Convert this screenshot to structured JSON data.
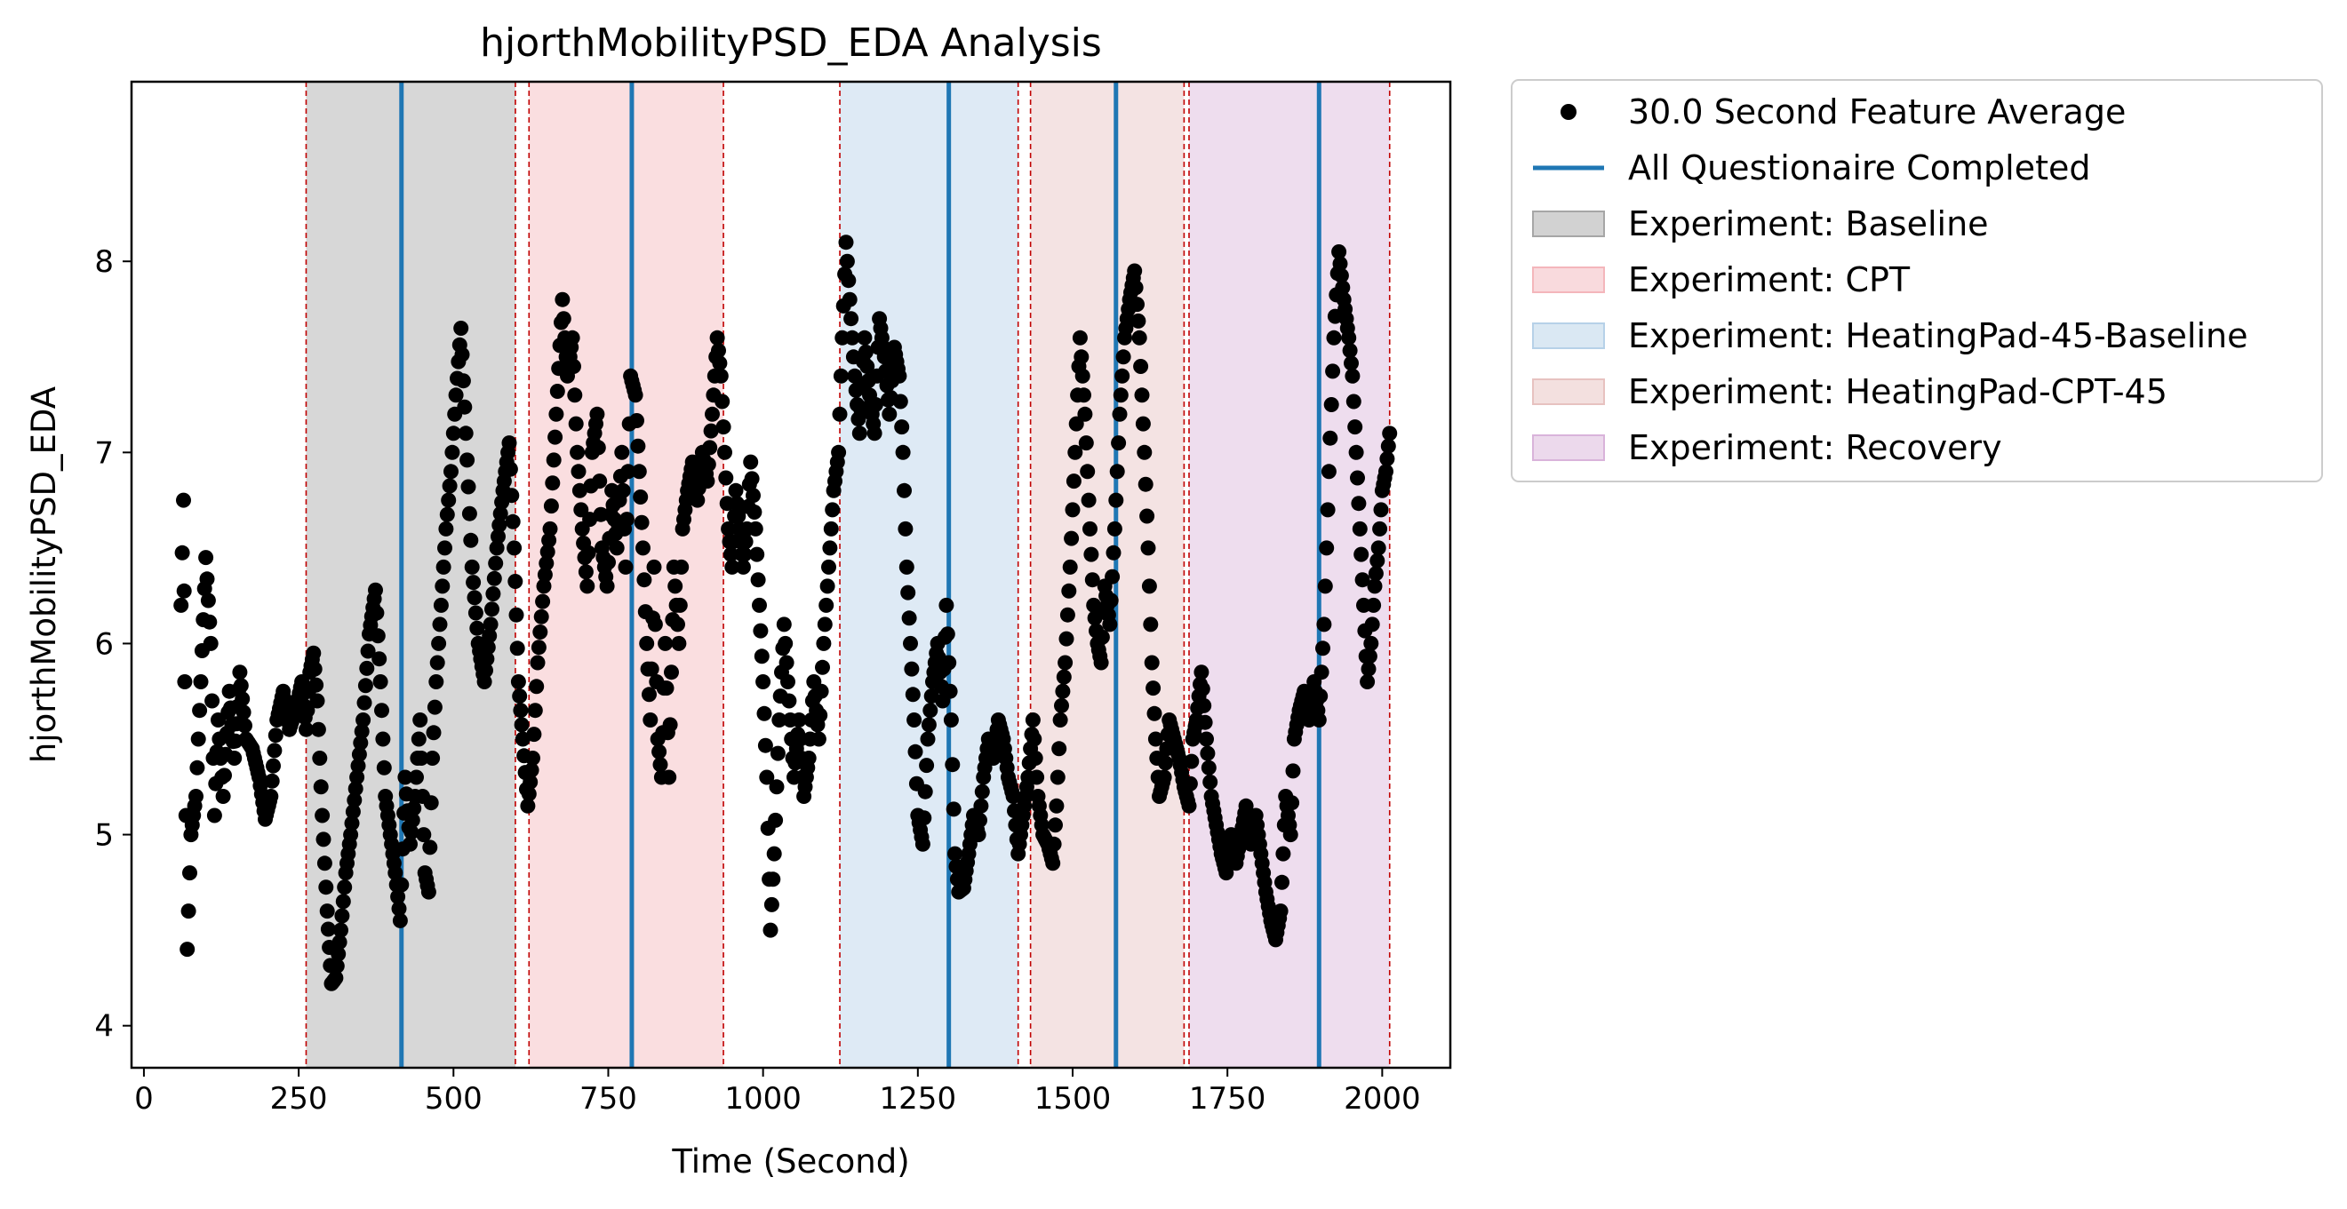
{
  "chart_data": {
    "type": "scatter",
    "title": "hjorthMobilityPSD_EDA Analysis",
    "xlabel": "Time (Second)",
    "ylabel": "hjorthMobilityPSD_EDA",
    "xlim": [
      -20,
      2110
    ],
    "ylim": [
      3.78,
      8.94
    ],
    "xticks": [
      0,
      250,
      500,
      750,
      1000,
      1250,
      1500,
      1750,
      2000
    ],
    "yticks": [
      4,
      5,
      6,
      7,
      8
    ],
    "grid": false,
    "legend_placement": "outside-upper-right",
    "series_name": "30.0 Second Feature Average",
    "point_color": "#000000",
    "anchors": [
      [
        60,
        6.2
      ],
      [
        64,
        6.75
      ],
      [
        66,
        5.8
      ],
      [
        70,
        4.4
      ],
      [
        76,
        5.0
      ],
      [
        84,
        5.2
      ],
      [
        92,
        5.8
      ],
      [
        100,
        6.45
      ],
      [
        108,
        6.0
      ],
      [
        114,
        5.1
      ],
      [
        120,
        5.6
      ],
      [
        128,
        5.2
      ],
      [
        138,
        5.75
      ],
      [
        146,
        5.4
      ],
      [
        155,
        5.85
      ],
      [
        165,
        5.5
      ],
      [
        175,
        5.45
      ],
      [
        186,
        5.3
      ],
      [
        196,
        5.08
      ],
      [
        205,
        5.2
      ],
      [
        215,
        5.6
      ],
      [
        225,
        5.75
      ],
      [
        235,
        5.55
      ],
      [
        245,
        5.65
      ],
      [
        255,
        5.8
      ],
      [
        262,
        5.55
      ],
      [
        268,
        5.85
      ],
      [
        274,
        5.95
      ],
      [
        280,
        5.7
      ],
      [
        288,
        5.1
      ],
      [
        296,
        4.6
      ],
      [
        303,
        4.22
      ],
      [
        310,
        4.25
      ],
      [
        318,
        4.5
      ],
      [
        326,
        4.8
      ],
      [
        334,
        5.0
      ],
      [
        344,
        5.3
      ],
      [
        354,
        5.6
      ],
      [
        364,
        6.05
      ],
      [
        374,
        6.28
      ],
      [
        382,
        5.8
      ],
      [
        390,
        5.2
      ],
      [
        398,
        5.0
      ],
      [
        406,
        4.8
      ],
      [
        414,
        4.55
      ],
      [
        422,
        5.3
      ],
      [
        430,
        4.95
      ],
      [
        438,
        5.2
      ],
      [
        446,
        5.6
      ],
      [
        454,
        4.8
      ],
      [
        460,
        4.7
      ],
      [
        466,
        5.4
      ],
      [
        472,
        5.8
      ],
      [
        480,
        6.2
      ],
      [
        488,
        6.6
      ],
      [
        496,
        6.9
      ],
      [
        504,
        7.3
      ],
      [
        512,
        7.65
      ],
      [
        520,
        7.1
      ],
      [
        530,
        6.4
      ],
      [
        540,
        6.0
      ],
      [
        550,
        5.8
      ],
      [
        560,
        6.1
      ],
      [
        570,
        6.5
      ],
      [
        580,
        6.8
      ],
      [
        590,
        7.05
      ],
      [
        598,
        6.5
      ],
      [
        605,
        5.8
      ],
      [
        612,
        5.5
      ],
      [
        620,
        5.15
      ],
      [
        628,
        5.4
      ],
      [
        636,
        5.9
      ],
      [
        646,
        6.3
      ],
      [
        656,
        6.6
      ],
      [
        666,
        7.2
      ],
      [
        676,
        7.8
      ],
      [
        684,
        7.4
      ],
      [
        692,
        7.6
      ],
      [
        700,
        7.0
      ],
      [
        708,
        6.6
      ],
      [
        716,
        6.3
      ],
      [
        724,
        7.0
      ],
      [
        732,
        7.2
      ],
      [
        740,
        6.5
      ],
      [
        748,
        6.3
      ],
      [
        756,
        6.8
      ],
      [
        764,
        6.5
      ],
      [
        772,
        7.0
      ],
      [
        778,
        6.4
      ],
      [
        786,
        7.4
      ],
      [
        794,
        7.3
      ],
      [
        800,
        6.9
      ],
      [
        806,
        6.5
      ],
      [
        812,
        6.0
      ],
      [
        818,
        5.6
      ],
      [
        824,
        6.4
      ],
      [
        830,
        5.5
      ],
      [
        836,
        5.3
      ],
      [
        842,
        6.0
      ],
      [
        848,
        5.3
      ],
      [
        856,
        6.4
      ],
      [
        864,
        6.0
      ],
      [
        870,
        6.6
      ],
      [
        878,
        6.8
      ],
      [
        886,
        6.95
      ],
      [
        894,
        6.75
      ],
      [
        902,
        7.0
      ],
      [
        910,
        6.85
      ],
      [
        918,
        7.2
      ],
      [
        926,
        7.6
      ],
      [
        932,
        7.4
      ],
      [
        938,
        7.0
      ],
      [
        944,
        6.6
      ],
      [
        950,
        6.4
      ],
      [
        956,
        6.8
      ],
      [
        962,
        6.6
      ],
      [
        968,
        6.4
      ],
      [
        974,
        6.6
      ],
      [
        980,
        6.95
      ],
      [
        988,
        6.6
      ],
      [
        994,
        6.2
      ],
      [
        1000,
        5.8
      ],
      [
        1006,
        5.3
      ],
      [
        1012,
        4.5
      ],
      [
        1018,
        4.9
      ],
      [
        1026,
        5.6
      ],
      [
        1034,
        6.1
      ],
      [
        1042,
        5.7
      ],
      [
        1050,
        5.3
      ],
      [
        1058,
        5.6
      ],
      [
        1066,
        5.2
      ],
      [
        1074,
        5.4
      ],
      [
        1082,
        5.8
      ],
      [
        1090,
        5.5
      ],
      [
        1098,
        6.0
      ],
      [
        1106,
        6.4
      ],
      [
        1114,
        6.8
      ],
      [
        1122,
        7.0
      ],
      [
        1128,
        7.6
      ],
      [
        1134,
        8.1
      ],
      [
        1140,
        7.8
      ],
      [
        1148,
        7.4
      ],
      [
        1156,
        7.1
      ],
      [
        1164,
        7.6
      ],
      [
        1172,
        7.3
      ],
      [
        1180,
        7.1
      ],
      [
        1188,
        7.7
      ],
      [
        1196,
        7.5
      ],
      [
        1204,
        7.2
      ],
      [
        1212,
        7.55
      ],
      [
        1220,
        7.4
      ],
      [
        1226,
        7.0
      ],
      [
        1232,
        6.4
      ],
      [
        1238,
        6.0
      ],
      [
        1244,
        5.6
      ],
      [
        1250,
        5.1
      ],
      [
        1258,
        4.95
      ],
      [
        1266,
        5.5
      ],
      [
        1274,
        5.8
      ],
      [
        1282,
        6.0
      ],
      [
        1290,
        5.7
      ],
      [
        1296,
        6.2
      ],
      [
        1304,
        5.6
      ],
      [
        1310,
        4.9
      ],
      [
        1316,
        4.7
      ],
      [
        1324,
        4.72
      ],
      [
        1332,
        4.9
      ],
      [
        1340,
        5.1
      ],
      [
        1348,
        5.0
      ],
      [
        1356,
        5.3
      ],
      [
        1364,
        5.5
      ],
      [
        1372,
        5.4
      ],
      [
        1380,
        5.6
      ],
      [
        1388,
        5.5
      ],
      [
        1396,
        5.3
      ],
      [
        1404,
        5.2
      ],
      [
        1412,
        4.9
      ],
      [
        1420,
        5.1
      ],
      [
        1428,
        5.3
      ],
      [
        1436,
        5.6
      ],
      [
        1444,
        5.2
      ],
      [
        1452,
        5.0
      ],
      [
        1460,
        4.95
      ],
      [
        1468,
        4.85
      ],
      [
        1474,
        5.15
      ],
      [
        1480,
        5.6
      ],
      [
        1488,
        5.9
      ],
      [
        1496,
        6.4
      ],
      [
        1504,
        7.0
      ],
      [
        1512,
        7.6
      ],
      [
        1520,
        7.2
      ],
      [
        1528,
        6.6
      ],
      [
        1534,
        6.2
      ],
      [
        1540,
        6.0
      ],
      [
        1546,
        5.9
      ],
      [
        1552,
        6.3
      ],
      [
        1560,
        6.1
      ],
      [
        1568,
        6.6
      ],
      [
        1576,
        7.2
      ],
      [
        1584,
        7.6
      ],
      [
        1592,
        7.8
      ],
      [
        1600,
        7.95
      ],
      [
        1608,
        7.6
      ],
      [
        1616,
        7.0
      ],
      [
        1622,
        6.5
      ],
      [
        1628,
        5.9
      ],
      [
        1634,
        5.5
      ],
      [
        1640,
        5.2
      ],
      [
        1648,
        5.3
      ],
      [
        1656,
        5.6
      ],
      [
        1664,
        5.5
      ],
      [
        1672,
        5.4
      ],
      [
        1680,
        5.25
      ],
      [
        1688,
        5.15
      ],
      [
        1694,
        5.5
      ],
      [
        1700,
        5.6
      ],
      [
        1708,
        5.85
      ],
      [
        1716,
        5.5
      ],
      [
        1724,
        5.2
      ],
      [
        1732,
        5.05
      ],
      [
        1740,
        4.9
      ],
      [
        1748,
        4.8
      ],
      [
        1756,
        5.0
      ],
      [
        1764,
        4.85
      ],
      [
        1772,
        5.0
      ],
      [
        1780,
        5.15
      ],
      [
        1788,
        4.95
      ],
      [
        1796,
        5.1
      ],
      [
        1804,
        4.9
      ],
      [
        1812,
        4.7
      ],
      [
        1820,
        4.55
      ],
      [
        1828,
        4.45
      ],
      [
        1836,
        4.6
      ],
      [
        1844,
        5.2
      ],
      [
        1852,
        5.0
      ],
      [
        1858,
        5.5
      ],
      [
        1866,
        5.65
      ],
      [
        1874,
        5.75
      ],
      [
        1882,
        5.6
      ],
      [
        1890,
        5.8
      ],
      [
        1898,
        5.6
      ],
      [
        1906,
        6.1
      ],
      [
        1914,
        6.9
      ],
      [
        1922,
        7.6
      ],
      [
        1930,
        8.05
      ],
      [
        1938,
        7.8
      ],
      [
        1946,
        7.6
      ],
      [
        1952,
        7.4
      ],
      [
        1958,
        7.0
      ],
      [
        1964,
        6.6
      ],
      [
        1970,
        6.2
      ],
      [
        1976,
        5.8
      ],
      [
        1982,
        6.0
      ],
      [
        1988,
        6.3
      ],
      [
        1994,
        6.5
      ],
      [
        2000,
        6.8
      ],
      [
        2006,
        6.9
      ],
      [
        2012,
        7.1
      ]
    ],
    "questionnaire_series": {
      "name": "All Questionaire Completed",
      "color": "#1f77b4",
      "x": [
        416,
        788,
        1300,
        1570,
        1898
      ]
    },
    "experiment_phases": [
      {
        "name": "Experiment: Baseline",
        "color": "#a6a6a6",
        "start": 262,
        "end": 600
      },
      {
        "name": "Experiment: CPT",
        "color": "#f4b6bb",
        "start": 622,
        "end": 936
      },
      {
        "name": "Experiment: HeatingPad-45-Baseline",
        "color": "#b6d1e8",
        "start": 1124,
        "end": 1412
      },
      {
        "name": "Experiment: HeatingPad-CPT-45",
        "color": "#e7c2c0",
        "start": 1432,
        "end": 1680
      },
      {
        "name": "Experiment: Recovery",
        "color": "#d9b3da",
        "start": 1688,
        "end": 2012
      }
    ],
    "phase_boundaries": [
      262,
      600,
      622,
      936,
      1124,
      1412,
      1432,
      1680,
      1688,
      2012
    ],
    "boundary_color": "#c00000"
  }
}
